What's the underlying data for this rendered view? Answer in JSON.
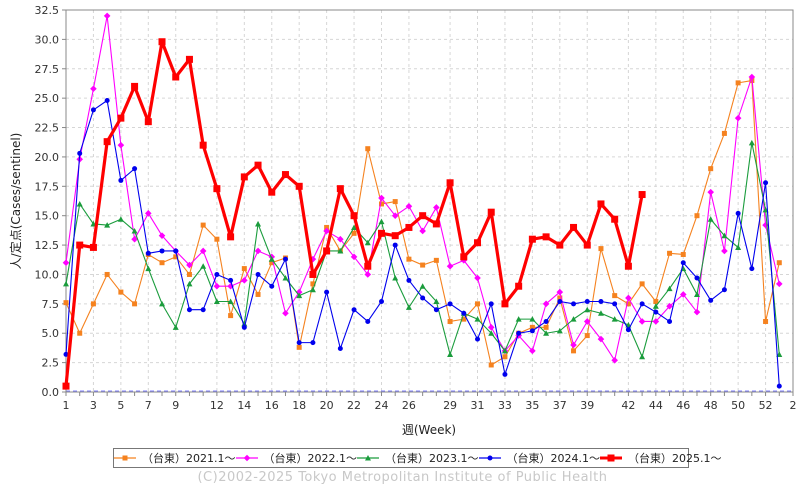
{
  "chart_data": {
    "type": "line",
    "title": "",
    "xlabel": "週(Week)",
    "ylabel": "人/定点(Cases/sentinel)",
    "xlim": [
      0,
      53
    ],
    "ylim": [
      0,
      32.5
    ],
    "yticks": [
      "0.0",
      "2.5",
      "5.0",
      "7.5",
      "10.0",
      "12.5",
      "15.0",
      "17.5",
      "20.0",
      "22.5",
      "25.0",
      "27.5",
      "30.0",
      "32.5"
    ],
    "xticks": [
      "1",
      "3",
      "5",
      "7",
      "9",
      "12",
      "14",
      "16",
      "18",
      "20",
      "22",
      "24",
      "26",
      "29",
      "31",
      "33",
      "35",
      "37",
      "39",
      "42",
      "44",
      "46",
      "48",
      "50",
      "52",
      "2"
    ],
    "grid": true,
    "legend_position": "bottom",
    "series": [
      {
        "name": "（台東）2021.1～",
        "color": "#f5821f",
        "marker": "square",
        "values": [
          7.6,
          5.0,
          7.5,
          10.0,
          8.5,
          7.5,
          11.7,
          11.0,
          11.5,
          10.0,
          14.2,
          13.0,
          6.5,
          10.5,
          8.3,
          11.0,
          11.4,
          3.8,
          9.2,
          14.0,
          12.0,
          13.5,
          20.7,
          16.0,
          16.2,
          11.3,
          10.8,
          11.2,
          6.0,
          6.2,
          7.5,
          2.3,
          3.0,
          5.0,
          5.5,
          5.5,
          8.0,
          3.5,
          4.8,
          12.2,
          8.2,
          7.5,
          9.2,
          7.7,
          11.8,
          11.7,
          15.0,
          19.0,
          22.0,
          26.3,
          26.5,
          6.0,
          11.0
        ]
      },
      {
        "name": "（台東）2022.1～",
        "color": "#ff00ff",
        "marker": "diamond",
        "values": [
          11.0,
          19.8,
          25.8,
          32.0,
          21.0,
          13.0,
          15.2,
          13.3,
          12.0,
          10.8,
          12.0,
          9.0,
          9.0,
          9.5,
          12.0,
          11.5,
          6.7,
          8.5,
          11.3,
          13.7,
          13.0,
          11.5,
          10.0,
          16.5,
          15.0,
          15.8,
          13.7,
          15.7,
          10.7,
          11.2,
          9.7,
          5.5,
          3.5,
          4.8,
          3.5,
          7.5,
          8.5,
          4.0,
          6.0,
          4.5,
          2.7,
          8.0,
          6.0,
          6.0,
          7.3,
          8.3,
          6.8,
          17.0,
          12.0,
          23.3,
          26.8,
          14.2,
          9.2
        ]
      },
      {
        "name": "（台東）2023.1～",
        "color": "#1a9c3c",
        "marker": "triangle",
        "values": [
          9.2,
          16.0,
          14.3,
          14.2,
          14.7,
          13.7,
          10.5,
          7.5,
          5.5,
          9.2,
          10.7,
          7.7,
          7.7,
          5.8,
          14.3,
          11.3,
          9.7,
          8.2,
          8.7,
          12.0,
          12.0,
          14.0,
          12.7,
          14.5,
          9.7,
          7.2,
          9.0,
          7.7,
          3.2,
          6.7,
          6.2,
          5.0,
          3.5,
          6.2,
          6.2,
          5.0,
          5.2,
          6.2,
          7.0,
          6.7,
          6.2,
          5.7,
          3.0,
          7.3,
          8.8,
          10.5,
          8.3,
          14.7,
          13.3,
          12.3,
          21.2,
          15.5,
          3.2
        ]
      },
      {
        "name": "（台東）2024.1～",
        "color": "#0000ee",
        "marker": "circle",
        "values": [
          3.2,
          20.3,
          24.0,
          24.8,
          18.0,
          19.0,
          11.8,
          12.0,
          12.0,
          7.0,
          7.0,
          10.0,
          9.5,
          5.5,
          10.0,
          9.0,
          11.3,
          4.2,
          4.2,
          8.5,
          3.7,
          7.0,
          6.0,
          7.7,
          12.5,
          9.5,
          8.0,
          7.0,
          7.5,
          6.7,
          4.5,
          7.5,
          1.5,
          5.0,
          5.2,
          6.0,
          7.7,
          7.5,
          7.7,
          7.7,
          7.5,
          5.3,
          7.5,
          6.8,
          6.0,
          11.0,
          9.7,
          7.8,
          8.7,
          15.2,
          10.5,
          17.8,
          0.5
        ]
      },
      {
        "name": "（台東）2025.1～",
        "color": "#ff0000",
        "marker": "square",
        "values": [
          0.5,
          12.5,
          12.3,
          21.3,
          23.3,
          26.0,
          23.0,
          29.8,
          26.8,
          28.3,
          21.0,
          17.3,
          13.2,
          18.3,
          19.3,
          17.0,
          18.5,
          17.5,
          10.0,
          12.0,
          17.3,
          15.0,
          10.7,
          13.5,
          13.3,
          14.0,
          15.0,
          14.3,
          17.8,
          11.5,
          12.7,
          15.3,
          7.5,
          9.0,
          13.0,
          13.2,
          12.5,
          14.0,
          12.5,
          16.0,
          14.7,
          10.7,
          16.8
        ]
      }
    ]
  },
  "footer": {
    "copyright": "(C)2002-2025 Tokyo Metropolitan Institute of Public Health"
  }
}
